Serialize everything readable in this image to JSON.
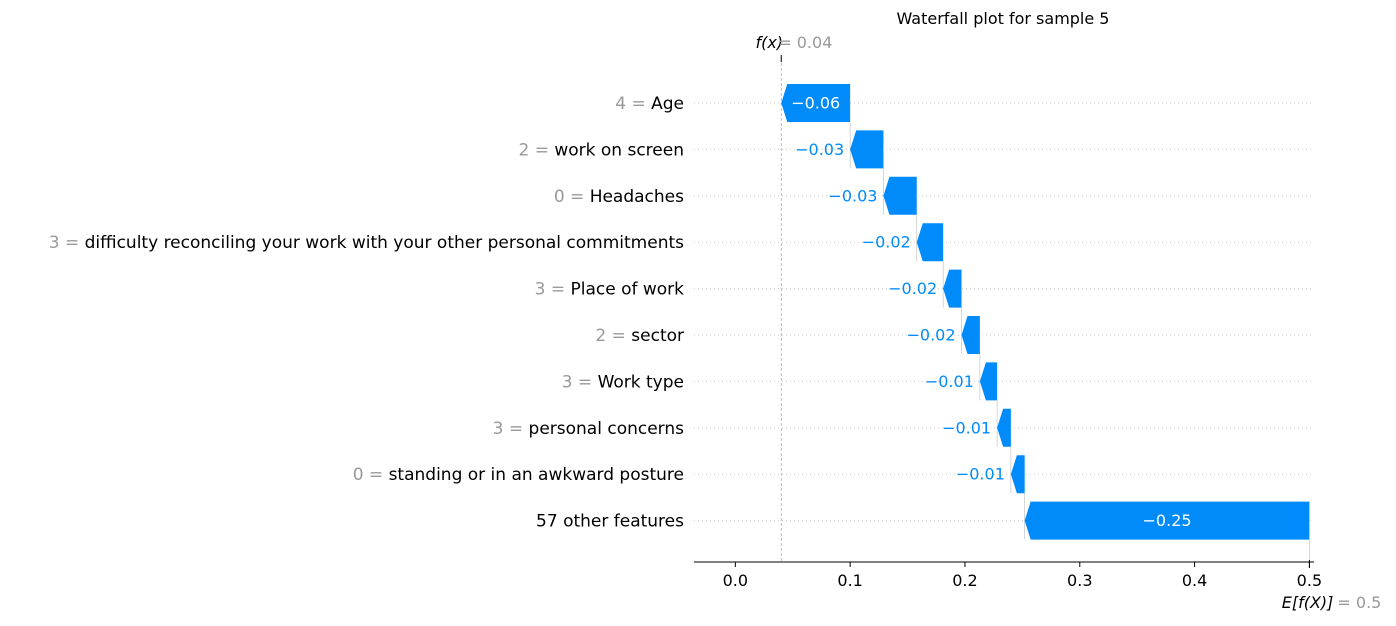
{
  "chart_data": {
    "type": "waterfall",
    "title": "Waterfall plot for sample 5",
    "fx_label": "f(x)",
    "fx_text": "= 0.04",
    "fx_value": 0.04,
    "base_label": "E[f(X)]",
    "base_text": "= 0.5",
    "base_value": 0.5,
    "xlim": [
      -0.036,
      0.504
    ],
    "xticks": [
      0.0,
      0.1,
      0.2,
      0.3,
      0.4,
      0.5
    ],
    "xtick_labels": [
      "0.0",
      "0.1",
      "0.2",
      "0.3",
      "0.4",
      "0.5"
    ],
    "colors": {
      "negative": "#008bfb",
      "feature_value": "#999999",
      "text": "#000000",
      "grid": "#cccccc",
      "bar_label_inside": "#ffffff"
    },
    "features": [
      {
        "value_text": "4 =",
        "name": "Age",
        "shap": -0.06,
        "label": "−0.06",
        "label_inside": true
      },
      {
        "value_text": "2 =",
        "name": "work on screen",
        "shap": -0.029,
        "label": "−0.03",
        "label_inside": false
      },
      {
        "value_text": "0 =",
        "name": "Headaches",
        "shap": -0.029,
        "label": "−0.03",
        "label_inside": false
      },
      {
        "value_text": "3 =",
        "name": "difficulty reconciling your work with your other personal commitments",
        "shap": -0.023,
        "label": "−0.02",
        "label_inside": false
      },
      {
        "value_text": "3 =",
        "name": "Place of work",
        "shap": -0.016,
        "label": "−0.02",
        "label_inside": false
      },
      {
        "value_text": "2 =",
        "name": "sector",
        "shap": -0.016,
        "label": "−0.02",
        "label_inside": false
      },
      {
        "value_text": "3 =",
        "name": "Work type",
        "shap": -0.015,
        "label": "−0.01",
        "label_inside": false
      },
      {
        "value_text": "3 =",
        "name": "personal concerns",
        "shap": -0.012,
        "label": "−0.01",
        "label_inside": false
      },
      {
        "value_text": "0 =",
        "name": "standing or in an awkward posture",
        "shap": -0.012,
        "label": "−0.01",
        "label_inside": false
      },
      {
        "value_text": "",
        "name": "57 other features",
        "shap": -0.248,
        "label": "−0.25",
        "label_inside": true
      }
    ]
  }
}
